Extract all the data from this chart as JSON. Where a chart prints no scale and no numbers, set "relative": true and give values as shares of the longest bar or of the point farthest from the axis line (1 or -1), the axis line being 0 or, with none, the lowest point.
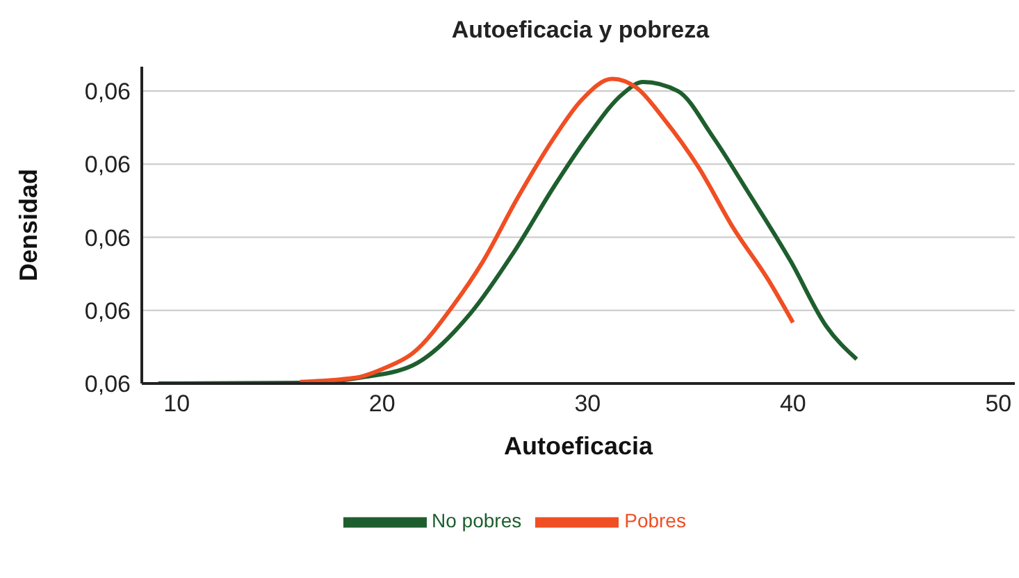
{
  "chart_data": {
    "type": "line",
    "title": "Autoeficacia y pobreza",
    "xlabel": "Autoeficacia",
    "ylabel": "Densidad",
    "relative": true,
    "xlim": [
      8.3,
      50.8
    ],
    "xticks": [
      10,
      20,
      30,
      40,
      50
    ],
    "annotations": [
      "0,06",
      "0,06",
      "0,06",
      "0,06",
      "0,06"
    ],
    "grid": "y",
    "legend": "bottom",
    "marker": "none",
    "line_style": "solid",
    "series": [
      {
        "name": "No pobres",
        "color": "#1e5e2e",
        "x": [
          9.1,
          16,
          19,
          21.5,
          24.3,
          26.4,
          28.4,
          30,
          31.7,
          32.7,
          34.4,
          36.1,
          37.8,
          39.9,
          41.6,
          43.1
        ],
        "values": [
          0,
          0.002,
          0.02,
          0.06,
          0.23,
          0.43,
          0.65,
          0.81,
          0.95,
          0.99,
          0.96,
          0.81,
          0.63,
          0.4,
          0.19,
          0.08
        ]
      },
      {
        "name": "Pobres",
        "color": "#f04e23",
        "x": [
          16,
          18.8,
          20.1,
          21.5,
          23.5,
          24.9,
          26.6,
          28.4,
          29.7,
          31.2,
          32.4,
          33.7,
          35.4,
          37.1,
          38.8,
          40
        ],
        "values": [
          0.005,
          0.02,
          0.05,
          0.1,
          0.26,
          0.4,
          0.61,
          0.81,
          0.93,
          1,
          0.97,
          0.87,
          0.71,
          0.51,
          0.34,
          0.2
        ]
      }
    ]
  }
}
